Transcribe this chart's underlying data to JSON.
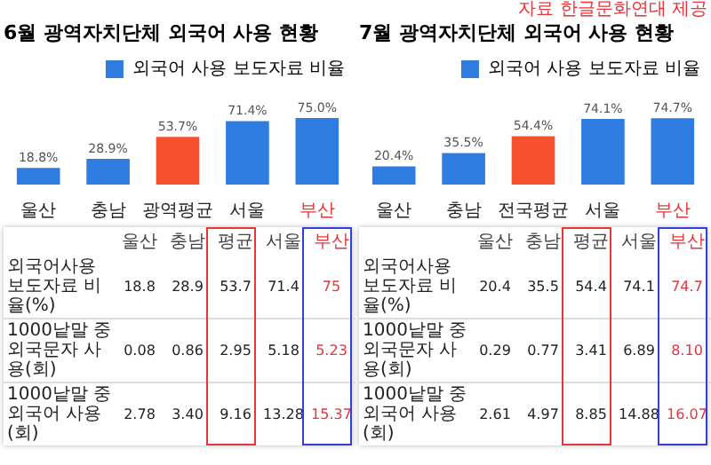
{
  "chart_data": [
    {
      "type": "bar",
      "title": "6월 광역자치단체 외국어 사용 현황",
      "categories": [
        "울산",
        "충남",
        "광역평균",
        "서울",
        "부산"
      ],
      "series": [
        {
          "name": "외국어 사용 보도자료 비율",
          "values": [
            18.8,
            28.9,
            53.7,
            71.4,
            75
          ],
          "colors": [
            "#2f7de1",
            "#2f7de1",
            "#f4512c",
            "#2f7de1",
            "#2f7de1"
          ],
          "value_labels": [
            "18.8%",
            "28.9%",
            "53.7%",
            "71.4%",
            "75.0%"
          ]
        }
      ],
      "legend": "top right"
    },
    {
      "type": "other",
      "categories": [
        "울산",
        "충남",
        "평균",
        "서울",
        "부산"
      ],
      "series": [
        {
          "name": "외국어사용 보도자료 비율(%)",
          "values": [
            18.8,
            28.9,
            53.7,
            71.4,
            75
          ]
        },
        {
          "name": "1000낱말 중 외국문자 사용(회)",
          "values": [
            0.08,
            0.86,
            2.95,
            5.18,
            5.23
          ]
        },
        {
          "name": "1000낱말 중 외국어 사용(회)",
          "values": [
            2.78,
            3.4,
            9.16,
            13.28,
            15.37
          ],
          "value_labels": [
            "2.78",
            "3.40",
            "9.16",
            "13.28",
            "15.37"
          ]
        }
      ],
      "data_labels": true
    },
    {
      "type": "bar",
      "title": "7월 광역자치단체 외국어 사용 현황",
      "annotations": [
        "자료 한글문화연대 제공"
      ],
      "categories": [
        "울산",
        "충남",
        "전국평균",
        "서울",
        "부산"
      ],
      "series": [
        {
          "name": "외국어 사용 보도자료 비율",
          "values": [
            20.4,
            35.5,
            54.4,
            74.1,
            74.7
          ],
          "colors": [
            "#2f7de1",
            "#2f7de1",
            "#f4512c",
            "#2f7de1",
            "#2f7de1"
          ],
          "value_labels": [
            "20.4%",
            "35.5%",
            "54.4%",
            "74.1%",
            "74.7%"
          ]
        }
      ],
      "legend": "top right"
    },
    {
      "type": "other",
      "categories": [
        "울산",
        "충남",
        "평균",
        "서울",
        "부산"
      ],
      "series": [
        {
          "name": "외국어사용 보도자료 비율(%)",
          "values": [
            20.4,
            35.5,
            54.4,
            74.1,
            74.7
          ]
        },
        {
          "name": "1000낱말 중 외국문자 사용(회)",
          "values": [
            0.29,
            0.77,
            3.41,
            6.89,
            8.1
          ],
          "value_labels": [
            "0.29",
            "0.77",
            "3.41",
            "6.89",
            "8.10"
          ]
        },
        {
          "name": "1000낱말 중 외국어 사용(회)",
          "values": [
            2.61,
            4.97,
            8.85,
            14.88,
            16.07
          ]
        }
      ],
      "data_labels": true
    }
  ]
}
